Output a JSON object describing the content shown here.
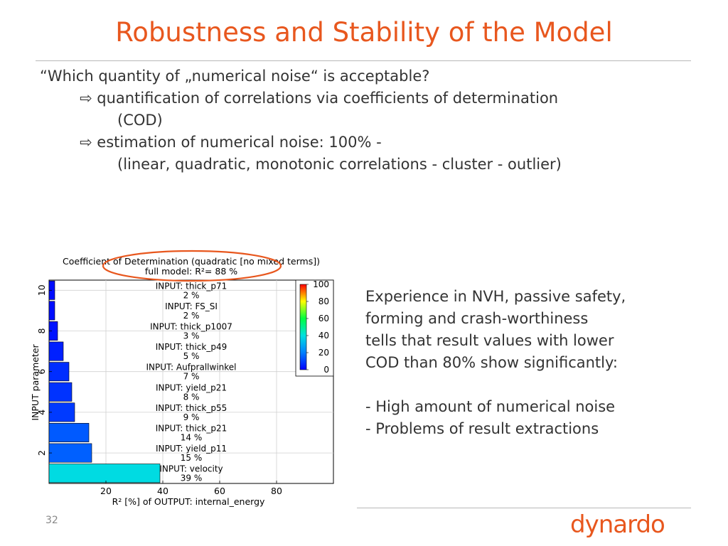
{
  "slide": {
    "title": "Robustness and Stability of the Model",
    "bullets": [
      "“Which quantity of „numerical noise“ is acceptable?",
      "quantification of correlations via coefficients of determination",
      "(COD)",
      "estimation of numerical noise: 100% -",
      "(linear, quadratic, monotonic correlations - cluster - outlier)"
    ],
    "arrow_glyph": "⇨",
    "side_text": [
      "Experience in NVH, passive safety,",
      "forming and  crash-worthiness",
      "tells that result values with lower",
      "COD than 80% show significantly:"
    ],
    "side_points": [
      "- High amount of numerical noise",
      "- Problems of result extractions"
    ],
    "page_number": "32",
    "logo": "dynardo",
    "colors": {
      "title": "#E8571E",
      "text": "#333333",
      "logo": "#E8571E",
      "highlight": "#E8571E"
    }
  },
  "chart_data": {
    "type": "bar",
    "orientation": "horizontal",
    "title": "Coefficient of Determination (quadratic [no mixed terms])",
    "subtitle": "full model: R²=    88 %",
    "xlabel": "R² [%] of OUTPUT: internal_energy",
    "ylabel": "INPUT parameter",
    "xlim": [
      0,
      100
    ],
    "ylim": [
      0.5,
      10.5
    ],
    "x_ticks": [
      "20",
      "40",
      "60",
      "80"
    ],
    "x_tick_values": [
      20,
      40,
      60,
      80
    ],
    "y_ticks": [
      "2",
      "4",
      "6",
      "8",
      "10"
    ],
    "y_tick_values": [
      2,
      4,
      6,
      8,
      10
    ],
    "categories": [
      "INPUT: velocity",
      "INPUT: yield_p11",
      "INPUT: thick_p21",
      "INPUT: thick_p55",
      "INPUT: yield_p21",
      "INPUT: Aufprallwinkel",
      "INPUT: thick_p49",
      "INPUT: thick_p1007",
      "INPUT: FS_SI",
      "INPUT: thick_p71"
    ],
    "values": [
      39,
      15,
      14,
      9,
      8,
      7,
      5,
      3,
      2,
      2
    ],
    "value_labels": [
      "39 %",
      "15 %",
      "14 %",
      "9 %",
      "8 %",
      "7 %",
      "5 %",
      "3 %",
      "2 %",
      "2 %"
    ],
    "grid": true,
    "colorbar": {
      "ticks": [
        "100",
        "80",
        "60",
        "40",
        "20",
        "0"
      ],
      "tick_values": [
        100,
        80,
        60,
        40,
        20,
        0
      ],
      "placement": "top-right"
    }
  }
}
